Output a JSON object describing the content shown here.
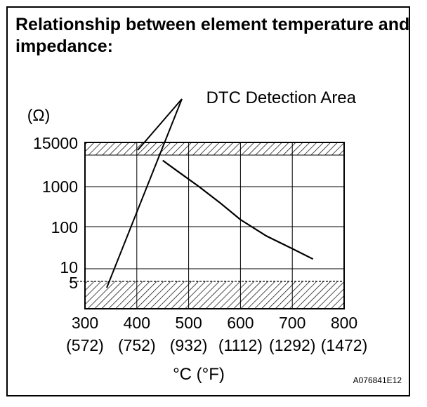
{
  "figure_code": "A076841E12",
  "chart_data": {
    "type": "line",
    "title": "Relationship between element temperature and impedance:",
    "ylabel": "(Ω)",
    "xlabel": "°C (°F)",
    "annotation": "DTC Detection Area",
    "x_ticks": [
      300,
      400,
      500,
      600,
      700,
      800
    ],
    "x_ticks_f": [
      "(572)",
      "(752)",
      "(932)",
      "(1112)",
      "(1292)",
      "(1472)"
    ],
    "y_ticks": [
      "15000",
      "1000",
      "100",
      "10",
      "5"
    ],
    "xlim": [
      300,
      800
    ],
    "y_scale": "log (non-uniform)",
    "grid": true,
    "detection_areas": [
      {
        "label": "DTC Detection Area",
        "from": 15000,
        "to": "above"
      },
      {
        "label": "DTC Detection Area",
        "from": "below",
        "to": 5
      }
    ],
    "series": [
      {
        "x": [
          450,
          480,
          520,
          560,
          600,
          650,
          700,
          740
        ],
        "y": [
          5000,
          2500,
          1000,
          400,
          150,
          60,
          30,
          17
        ]
      }
    ]
  }
}
